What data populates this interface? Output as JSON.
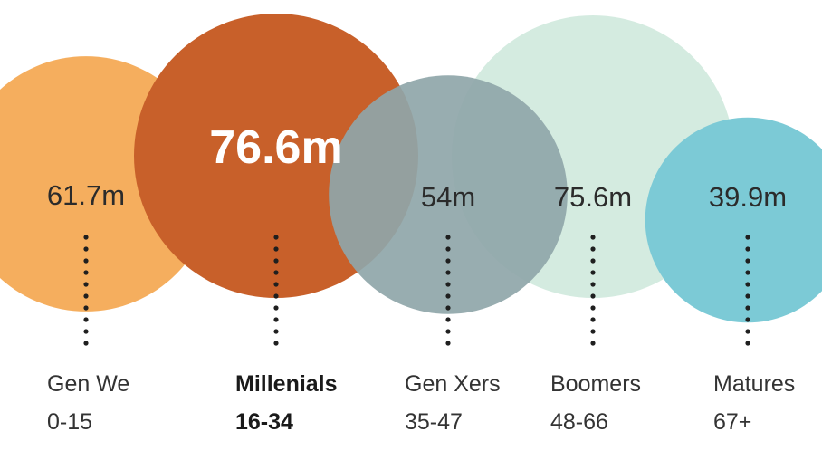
{
  "chart_data": {
    "type": "bubble",
    "title": "",
    "unit": "m",
    "highlight": "Millenials",
    "series": [
      {
        "name": "Gen We",
        "range": "0-15",
        "value": 61.7,
        "label": "61.7m",
        "color": "#F5AE5E",
        "text_color": "#2b2b2b",
        "bold": false
      },
      {
        "name": "Millenials",
        "range": "16-34",
        "value": 76.6,
        "label": "76.6m",
        "color": "#C8602A",
        "text_color": "#ffffff",
        "bold": true
      },
      {
        "name": "Gen Xers",
        "range": "35-47",
        "value": 54,
        "label": "54m",
        "color": "#8FA6A9",
        "text_color": "#2b2b2b",
        "bold": false
      },
      {
        "name": "Boomers",
        "range": "48-66",
        "value": 75.6,
        "label": "75.6m",
        "color": "#CDE7DB",
        "text_color": "#2b2b2b",
        "bold": false
      },
      {
        "name": "Matures",
        "range": "67+",
        "value": 39.9,
        "label": "39.9m",
        "color": "#7CCAD6",
        "text_color": "#2b2b2b",
        "bold": false
      }
    ]
  }
}
